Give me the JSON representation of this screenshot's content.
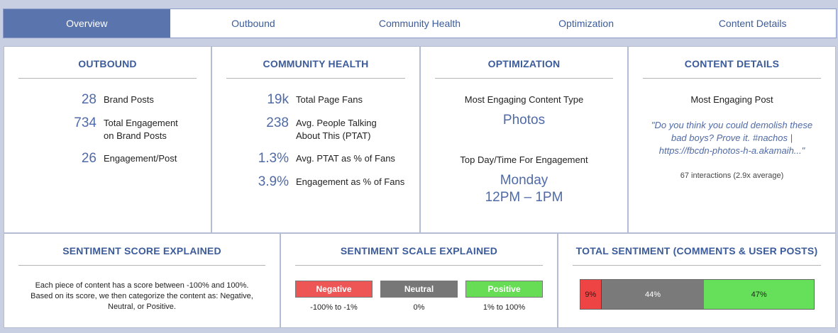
{
  "tabs": [
    {
      "label": "Overview",
      "active": true
    },
    {
      "label": "Outbound",
      "active": false
    },
    {
      "label": "Community Health",
      "active": false
    },
    {
      "label": "Optimization",
      "active": false
    },
    {
      "label": "Content Details",
      "active": false
    }
  ],
  "outbound": {
    "title": "OUTBOUND",
    "stats": [
      {
        "value": "28",
        "label": "Brand Posts"
      },
      {
        "value": "734",
        "label": "Total Engagement on Brand Posts"
      },
      {
        "value": "26",
        "label": "Engagement/Post"
      }
    ]
  },
  "community": {
    "title": "COMMUNITY HEALTH",
    "stats": [
      {
        "value": "19k",
        "label": "Total Page Fans"
      },
      {
        "value": "238",
        "label": "Avg. People Talking About This (PTAT)"
      },
      {
        "value": "1.3%",
        "label": "Avg. PTAT as % of Fans"
      },
      {
        "value": "3.9%",
        "label": "Engagement as % of Fans"
      }
    ]
  },
  "optimization": {
    "title": "OPTIMIZATION",
    "content_type_label": "Most Engaging Content Type",
    "content_type_value": "Photos",
    "daytime_label": "Top Day/Time For Engagement",
    "day_value": "Monday",
    "time_value": "12PM – 1PM"
  },
  "content_details": {
    "title": "CONTENT DETAILS",
    "post_label": "Most Engaging Post",
    "post_quote": "\"Do you think you could demolish these bad boys? Prove it. #nachos | https://fbcdn-photos-h-a.akamaih...\"",
    "interactions": "67 interactions (2.9x average)"
  },
  "sentiment_score": {
    "title": "SENTIMENT SCORE EXPLAINED",
    "text": "Each piece of content has a score between -100% and 100%. Based on its score, we then categorize the content as: Negative, Neutral, or Positive."
  },
  "sentiment_scale": {
    "title": "SENTIMENT SCALE EXPLAINED",
    "items": [
      {
        "label": "Negative",
        "range": "-100% to -1%",
        "color": "#ee5555"
      },
      {
        "label": "Neutral",
        "range": "0%",
        "color": "#777777"
      },
      {
        "label": "Positive",
        "range": "1% to 100%",
        "color": "#66dd55"
      }
    ]
  },
  "total_sentiment": {
    "title": "TOTAL SENTIMENT (COMMENTS & USER POSTS)",
    "segments": [
      {
        "name": "negative",
        "label": "9%",
        "value": 9,
        "color": "#ee4444"
      },
      {
        "name": "neutral",
        "label": "44%",
        "value": 44,
        "color": "#7a7a7a"
      },
      {
        "name": "positive",
        "label": "47%",
        "value": 47,
        "color": "#66e05a"
      }
    ]
  }
}
